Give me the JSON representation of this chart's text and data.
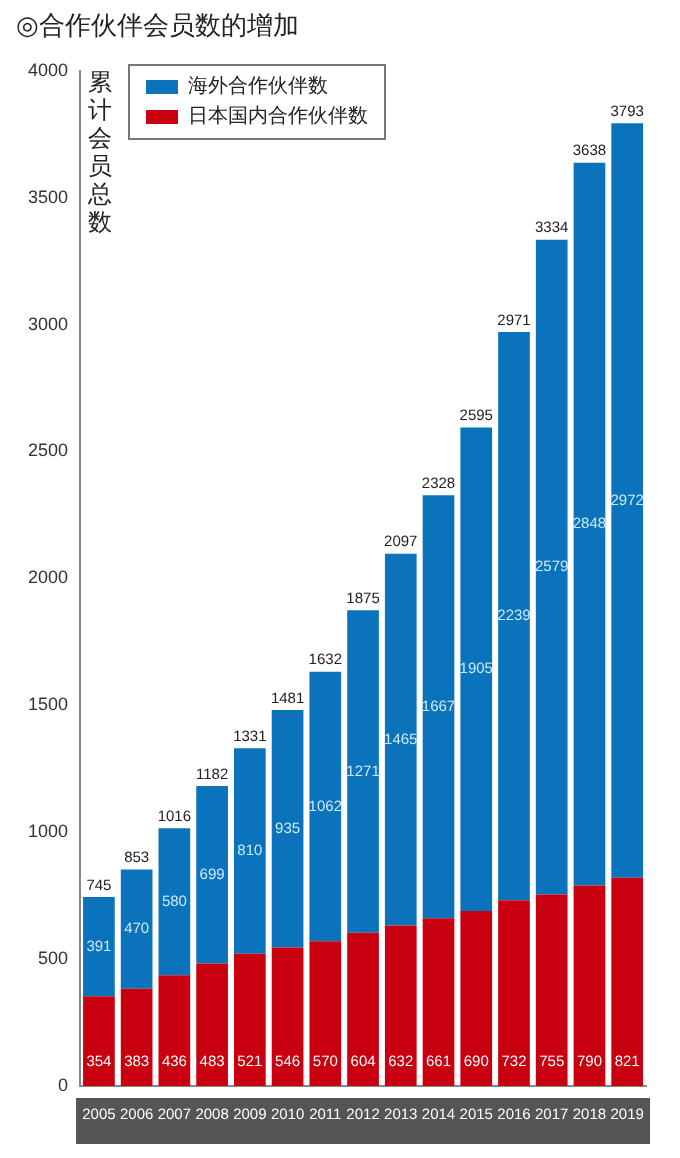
{
  "chart_data": {
    "type": "bar",
    "title": "◎合作伙伴会员数的增加",
    "ylabel": "累计会员总数",
    "stacked": true,
    "data_labels": true,
    "legend": "top left",
    "grid": false,
    "categories": [
      "2005",
      "2006",
      "2007",
      "2008",
      "2009",
      "2010",
      "2011",
      "2012",
      "2013",
      "2014",
      "2015",
      "2016",
      "2017",
      "2018",
      "2019"
    ],
    "series": [
      {
        "name": "日本国内合作伙伴数",
        "color": "#c8000f",
        "values": [
          354,
          383,
          436,
          483,
          521,
          546,
          570,
          604,
          632,
          661,
          690,
          732,
          755,
          790,
          821
        ]
      },
      {
        "name": "海外合作伙伴数",
        "color": "#0b73bb",
        "values": [
          391,
          470,
          580,
          699,
          810,
          935,
          1062,
          1271,
          1465,
          1667,
          1905,
          2239,
          2579,
          2848,
          2972
        ]
      }
    ],
    "totals": [
      "745",
      "853",
      "1016",
      "1182",
      "1331",
      "1481",
      "1632",
      "1875",
      "2097",
      "2328",
      "2595",
      "2971",
      "3334",
      "3638",
      "3793"
    ],
    "ylim": [
      0,
      4000
    ],
    "yticks": [
      0,
      500,
      1000,
      1500,
      2000,
      2500,
      3000,
      3500,
      4000
    ]
  }
}
